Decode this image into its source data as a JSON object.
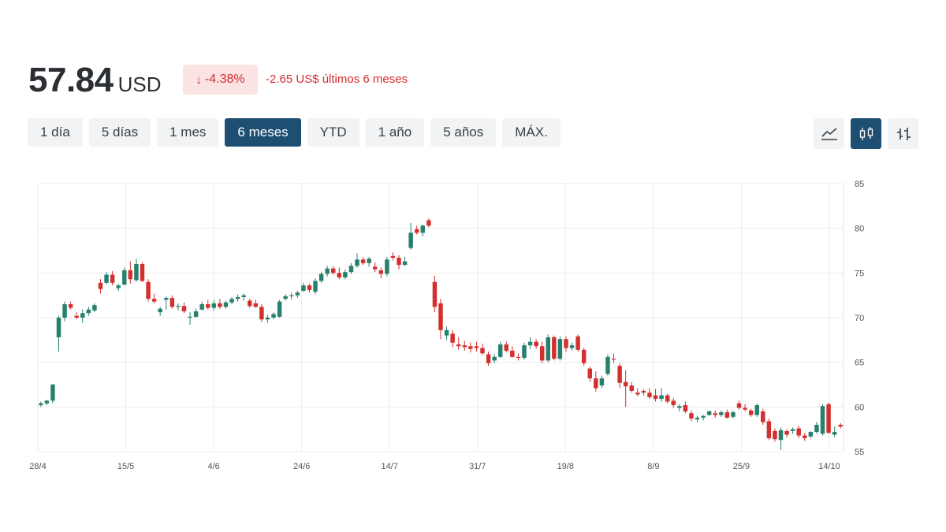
{
  "quote": {
    "price": "57.84",
    "currency": "USD",
    "change_percent": "-4.38%",
    "change_text": "-2.65 US$ últimos 6 meses",
    "down_color": "#d32f2f",
    "up_color": "#26806c"
  },
  "ranges": [
    {
      "label": "1 día",
      "active": false
    },
    {
      "label": "5 días",
      "active": false
    },
    {
      "label": "1 mes",
      "active": false
    },
    {
      "label": "6 meses",
      "active": true
    },
    {
      "label": "YTD",
      "active": false
    },
    {
      "label": "1 año",
      "active": false
    },
    {
      "label": "5 años",
      "active": false
    },
    {
      "label": "MÁX.",
      "active": false
    }
  ],
  "chart_views": [
    {
      "icon": "line-chart-icon",
      "active": false
    },
    {
      "icon": "candlestick-icon",
      "active": true
    },
    {
      "icon": "ohlc-bars-icon",
      "active": false
    }
  ],
  "chart_data": {
    "type": "candlestick",
    "x_ticks": [
      "28/4",
      "15/5",
      "4/6",
      "24/6",
      "14/7",
      "31/7",
      "19/8",
      "8/9",
      "25/9",
      "14/10"
    ],
    "y_ticks": [
      55,
      60,
      65,
      70,
      75,
      80,
      85
    ],
    "ylim": [
      55,
      85
    ],
    "grid": true,
    "y_axis_side": "right",
    "candles": [
      [
        60.2,
        60.6,
        60.0,
        60.4
      ],
      [
        60.4,
        60.8,
        60.2,
        60.7
      ],
      [
        60.7,
        62.6,
        60.4,
        62.5
      ],
      [
        67.8,
        70.2,
        66.2,
        70.0
      ],
      [
        70.0,
        71.8,
        69.6,
        71.5
      ],
      [
        71.5,
        71.8,
        70.9,
        71.1
      ],
      [
        70.2,
        70.6,
        69.8,
        70.0
      ],
      [
        70.0,
        70.9,
        69.4,
        70.5
      ],
      [
        70.5,
        71.2,
        70.2,
        70.9
      ],
      [
        70.8,
        71.6,
        70.6,
        71.4
      ],
      [
        73.9,
        74.3,
        72.7,
        73.2
      ],
      [
        73.9,
        75.1,
        73.7,
        74.8
      ],
      [
        74.8,
        75.2,
        73.6,
        73.9
      ],
      [
        73.3,
        73.8,
        73.0,
        73.6
      ],
      [
        73.7,
        75.6,
        73.6,
        75.3
      ],
      [
        75.3,
        76.3,
        73.8,
        74.3
      ],
      [
        74.2,
        76.6,
        74.0,
        76.0
      ],
      [
        76.0,
        76.2,
        74.0,
        74.1
      ],
      [
        74.0,
        74.3,
        71.8,
        72.1
      ],
      [
        72.1,
        72.7,
        71.6,
        71.8
      ],
      [
        70.6,
        71.2,
        70.2,
        71.0
      ],
      [
        72.0,
        72.4,
        70.9,
        72.2
      ],
      [
        72.2,
        72.5,
        71.0,
        71.2
      ],
      [
        71.2,
        71.6,
        70.8,
        71.3
      ],
      [
        71.3,
        71.7,
        70.5,
        70.7
      ],
      [
        70.0,
        70.6,
        69.2,
        70.1
      ],
      [
        70.1,
        71.0,
        70.0,
        70.7
      ],
      [
        70.9,
        71.8,
        70.8,
        71.5
      ],
      [
        71.5,
        72.0,
        70.9,
        71.1
      ],
      [
        71.1,
        72.0,
        70.8,
        71.6
      ],
      [
        71.6,
        72.1,
        71.0,
        71.2
      ],
      [
        71.2,
        71.9,
        71.0,
        71.7
      ],
      [
        71.7,
        72.3,
        71.5,
        72.1
      ],
      [
        72.1,
        72.6,
        71.8,
        72.3
      ],
      [
        72.3,
        72.7,
        71.9,
        72.5
      ],
      [
        71.9,
        72.1,
        71.1,
        71.3
      ],
      [
        71.6,
        72.0,
        71.1,
        71.2
      ],
      [
        71.2,
        71.5,
        69.5,
        69.8
      ],
      [
        69.8,
        70.3,
        69.4,
        70.0
      ],
      [
        70.0,
        70.6,
        69.8,
        70.4
      ],
      [
        70.1,
        72.0,
        70.0,
        71.8
      ],
      [
        72.1,
        72.6,
        71.9,
        72.4
      ],
      [
        72.4,
        72.8,
        72.0,
        72.5
      ],
      [
        72.5,
        73.0,
        72.2,
        72.8
      ],
      [
        73.0,
        73.9,
        72.9,
        73.6
      ],
      [
        73.6,
        73.8,
        72.8,
        73.1
      ],
      [
        72.9,
        74.4,
        72.6,
        74.1
      ],
      [
        74.1,
        75.1,
        73.9,
        74.9
      ],
      [
        74.9,
        75.8,
        74.6,
        75.5
      ],
      [
        75.5,
        75.8,
        74.8,
        75.0
      ],
      [
        75.0,
        75.6,
        74.3,
        74.5
      ],
      [
        74.5,
        75.4,
        74.3,
        75.1
      ],
      [
        75.1,
        76.1,
        74.9,
        75.8
      ],
      [
        75.8,
        77.2,
        75.6,
        76.5
      ],
      [
        76.5,
        76.8,
        75.9,
        76.1
      ],
      [
        76.1,
        76.8,
        75.7,
        76.6
      ],
      [
        75.7,
        76.2,
        75.1,
        75.4
      ],
      [
        75.3,
        75.6,
        74.4,
        74.9
      ],
      [
        74.9,
        76.8,
        74.6,
        76.5
      ],
      [
        76.9,
        77.3,
        76.4,
        76.7
      ],
      [
        76.7,
        77.0,
        75.4,
        75.9
      ],
      [
        75.9,
        76.8,
        75.8,
        76.3
      ],
      [
        77.8,
        80.6,
        77.6,
        79.5
      ],
      [
        79.9,
        80.3,
        79.3,
        79.5
      ],
      [
        79.5,
        80.4,
        79.1,
        80.3
      ],
      [
        80.9,
        81.1,
        80.1,
        80.3
      ],
      [
        74.0,
        74.7,
        70.6,
        71.2
      ],
      [
        71.6,
        72.1,
        67.6,
        68.6
      ],
      [
        68.0,
        69.0,
        67.5,
        68.6
      ],
      [
        68.2,
        68.6,
        66.7,
        67.2
      ],
      [
        67.0,
        67.8,
        66.4,
        66.8
      ],
      [
        66.9,
        67.4,
        66.3,
        66.7
      ],
      [
        66.8,
        67.2,
        66.1,
        66.5
      ],
      [
        66.8,
        67.3,
        66.2,
        66.6
      ],
      [
        66.6,
        67.1,
        65.8,
        66.0
      ],
      [
        65.9,
        66.2,
        64.6,
        64.9
      ],
      [
        65.2,
        65.9,
        64.9,
        65.6
      ],
      [
        65.6,
        67.3,
        65.5,
        67.0
      ],
      [
        67.0,
        67.3,
        66.1,
        66.3
      ],
      [
        66.3,
        66.8,
        65.5,
        65.6
      ],
      [
        65.6,
        66.0,
        65.2,
        65.5
      ],
      [
        65.5,
        67.2,
        65.3,
        66.9
      ],
      [
        66.9,
        67.8,
        66.5,
        67.3
      ],
      [
        67.3,
        67.6,
        66.5,
        66.8
      ],
      [
        66.8,
        67.3,
        64.9,
        65.2
      ],
      [
        65.2,
        68.1,
        65.0,
        67.8
      ],
      [
        67.8,
        68.0,
        65.2,
        65.4
      ],
      [
        65.4,
        67.9,
        65.2,
        67.6
      ],
      [
        67.6,
        67.9,
        66.2,
        66.6
      ],
      [
        66.6,
        67.2,
        66.3,
        66.9
      ],
      [
        67.9,
        68.1,
        66.2,
        66.4
      ],
      [
        66.4,
        66.6,
        64.6,
        64.9
      ],
      [
        64.3,
        64.5,
        62.8,
        63.2
      ],
      [
        63.2,
        64.0,
        61.7,
        62.1
      ],
      [
        62.4,
        63.5,
        62.1,
        63.2
      ],
      [
        63.7,
        65.9,
        63.5,
        65.6
      ],
      [
        65.4,
        66.0,
        64.9,
        65.3
      ],
      [
        64.6,
        64.9,
        62.1,
        62.7
      ],
      [
        62.8,
        64.1,
        60.0,
        62.3
      ],
      [
        62.4,
        62.8,
        61.6,
        61.8
      ],
      [
        61.6,
        62.1,
        61.2,
        61.4
      ],
      [
        61.8,
        62.0,
        61.3,
        61.6
      ],
      [
        61.6,
        62.1,
        60.9,
        61.1
      ],
      [
        61.3,
        62.0,
        60.6,
        60.9
      ],
      [
        60.9,
        62.1,
        60.6,
        61.3
      ],
      [
        61.3,
        61.5,
        60.4,
        60.6
      ],
      [
        60.7,
        61.0,
        59.9,
        60.2
      ],
      [
        59.9,
        60.3,
        59.5,
        60.1
      ],
      [
        60.2,
        60.6,
        59.3,
        59.5
      ],
      [
        59.3,
        59.6,
        58.4,
        58.7
      ],
      [
        58.6,
        59.0,
        58.3,
        58.8
      ],
      [
        58.8,
        59.1,
        58.5,
        59.0
      ],
      [
        59.1,
        59.6,
        59.0,
        59.5
      ],
      [
        59.3,
        59.6,
        58.8,
        59.1
      ],
      [
        59.1,
        59.6,
        58.9,
        59.4
      ],
      [
        59.4,
        59.7,
        58.7,
        58.8
      ],
      [
        58.9,
        59.6,
        58.7,
        59.4
      ],
      [
        60.4,
        60.7,
        59.7,
        59.9
      ],
      [
        59.9,
        60.3,
        59.5,
        59.7
      ],
      [
        59.6,
        59.8,
        58.9,
        59.1
      ],
      [
        59.1,
        60.4,
        58.9,
        60.2
      ],
      [
        59.5,
        59.8,
        58.0,
        58.3
      ],
      [
        58.4,
        58.7,
        56.3,
        56.5
      ],
      [
        57.3,
        57.6,
        56.1,
        56.4
      ],
      [
        56.3,
        57.7,
        55.2,
        57.4
      ],
      [
        57.3,
        57.5,
        56.6,
        56.9
      ],
      [
        57.3,
        57.7,
        57.0,
        57.5
      ],
      [
        57.6,
        57.9,
        56.5,
        56.8
      ],
      [
        56.8,
        57.1,
        56.2,
        56.5
      ],
      [
        56.7,
        57.3,
        56.5,
        57.2
      ],
      [
        57.2,
        58.3,
        57.0,
        58.0
      ],
      [
        57.0,
        60.3,
        56.8,
        60.1
      ],
      [
        60.3,
        60.5,
        57.0,
        57.1
      ],
      [
        56.9,
        57.8,
        56.6,
        57.2
      ],
      [
        58.0,
        58.2,
        57.6,
        57.8
      ]
    ]
  }
}
